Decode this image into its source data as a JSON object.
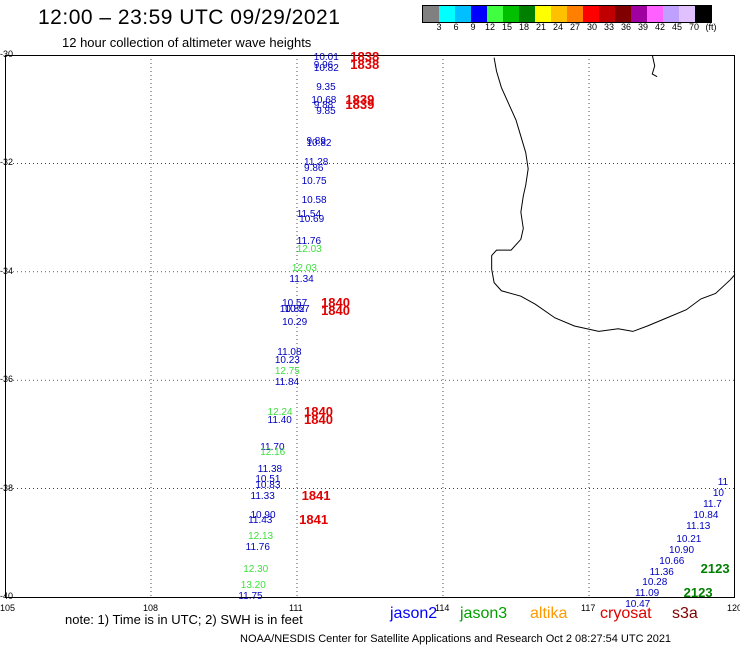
{
  "header": {
    "title": "12:00 – 23:59 UTC 09/29/2021",
    "subtitle": "12 hour collection of altimeter wave heights"
  },
  "scale": {
    "colors": [
      "#808080",
      "#00ffff",
      "#00c0ff",
      "#0000ff",
      "#40ff40",
      "#00c000",
      "#008000",
      "#ffff00",
      "#ffc000",
      "#ff8000",
      "#ff0000",
      "#c00000",
      "#800000",
      "#a000a0",
      "#ff60ff",
      "#c0a0ff",
      "#e0c0ff",
      "#000000"
    ],
    "labels": [
      "3",
      "6",
      "9",
      "12",
      "15",
      "18",
      "21",
      "24",
      "27",
      "30",
      "33",
      "36",
      "39",
      "42",
      "45",
      "70",
      "(ft)"
    ]
  },
  "axes": {
    "lon_ticks": [
      "105",
      "108",
      "111",
      "114",
      "117",
      "120"
    ],
    "lat_ticks": [
      "-30",
      "-32",
      "-34",
      "-36",
      "-38",
      "-40"
    ]
  },
  "observations": [
    {
      "t": "10.01",
      "c": "#0000c0",
      "lon": 111.55,
      "lat": -30.05
    },
    {
      "t": "9.96",
      "c": "#0000c0",
      "lon": 111.55,
      "lat": -30.2
    },
    {
      "t": "10.82",
      "c": "#0000c0",
      "lon": 111.55,
      "lat": -30.25
    },
    {
      "t": "9.35",
      "c": "#0000c0",
      "lon": 111.6,
      "lat": -30.6
    },
    {
      "t": "10.68",
      "c": "#0000c0",
      "lon": 111.5,
      "lat": -30.85
    },
    {
      "t": "9.88",
      "c": "#0000c0",
      "lon": 111.55,
      "lat": -30.95
    },
    {
      "t": "9.85",
      "c": "#0000c0",
      "lon": 111.6,
      "lat": -31.05
    },
    {
      "t": "9.89",
      "c": "#0000c0",
      "lon": 111.4,
      "lat": -31.6
    },
    {
      "t": "10.82",
      "c": "#0000c0",
      "lon": 111.4,
      "lat": -31.65
    },
    {
      "t": "11.28",
      "c": "#0000c0",
      "lon": 111.35,
      "lat": -32.0
    },
    {
      "t": "9.86",
      "c": "#0000c0",
      "lon": 111.35,
      "lat": -32.1
    },
    {
      "t": "10.75",
      "c": "#0000c0",
      "lon": 111.3,
      "lat": -32.35
    },
    {
      "t": "10.58",
      "c": "#0000c0",
      "lon": 111.3,
      "lat": -32.7
    },
    {
      "t": "11.54",
      "c": "#0000c0",
      "lon": 111.2,
      "lat": -32.95
    },
    {
      "t": "10.69",
      "c": "#0000c0",
      "lon": 111.25,
      "lat": -33.05
    },
    {
      "t": "11.76",
      "c": "#0000c0",
      "lon": 111.2,
      "lat": -33.45
    },
    {
      "t": "12.03",
      "c": "#40e040",
      "lon": 111.2,
      "lat": -33.6
    },
    {
      "t": "12.03",
      "c": "#40e040",
      "lon": 111.1,
      "lat": -33.95
    },
    {
      "t": "11.34",
      "c": "#0000c0",
      "lon": 111.05,
      "lat": -34.15
    },
    {
      "t": "10.57",
      "c": "#0000c0",
      "lon": 110.9,
      "lat": -34.6
    },
    {
      "t": "10.82",
      "c": "#0000c0",
      "lon": 110.85,
      "lat": -34.7
    },
    {
      "t": "10.57",
      "c": "#0000c0",
      "lon": 110.95,
      "lat": -34.7
    },
    {
      "t": "10.29",
      "c": "#0000c0",
      "lon": 110.9,
      "lat": -34.95
    },
    {
      "t": "11.08",
      "c": "#0000c0",
      "lon": 110.8,
      "lat": -35.5
    },
    {
      "t": "10.23",
      "c": "#0000c0",
      "lon": 110.75,
      "lat": -35.65
    },
    {
      "t": "12.75",
      "c": "#40e040",
      "lon": 110.75,
      "lat": -35.85
    },
    {
      "t": "11.84",
      "c": "#0000c0",
      "lon": 110.75,
      "lat": -36.05
    },
    {
      "t": "12.24",
      "c": "#40e040",
      "lon": 110.6,
      "lat": -36.6
    },
    {
      "t": "11.40",
      "c": "#0000c0",
      "lon": 110.6,
      "lat": -36.75
    },
    {
      "t": "11.70",
      "c": "#0000c0",
      "lon": 110.45,
      "lat": -37.25
    },
    {
      "t": "12.16",
      "c": "#40e040",
      "lon": 110.45,
      "lat": -37.35
    },
    {
      "t": "11.38",
      "c": "#0000c0",
      "lon": 110.4,
      "lat": -37.65
    },
    {
      "t": "10.51",
      "c": "#0000c0",
      "lon": 110.35,
      "lat": -37.85
    },
    {
      "t": "10.83",
      "c": "#0000c0",
      "lon": 110.35,
      "lat": -37.95
    },
    {
      "t": "11.33",
      "c": "#0000c0",
      "lon": 110.25,
      "lat": -38.15
    },
    {
      "t": "10.90",
      "c": "#0000c0",
      "lon": 110.25,
      "lat": -38.5
    },
    {
      "t": "11.43",
      "c": "#0000c0",
      "lon": 110.2,
      "lat": -38.6
    },
    {
      "t": "12.13",
      "c": "#40e040",
      "lon": 110.2,
      "lat": -38.9
    },
    {
      "t": "11.76",
      "c": "#0000c0",
      "lon": 110.15,
      "lat": -39.1
    },
    {
      "t": "12.30",
      "c": "#40e040",
      "lon": 110.1,
      "lat": -39.5
    },
    {
      "t": "13.20",
      "c": "#40e040",
      "lon": 110.05,
      "lat": -39.8
    },
    {
      "t": "11.75",
      "c": "#0000c0",
      "lon": 110.0,
      "lat": -40.0
    },
    {
      "t": "11",
      "c": "#0000c0",
      "lon": 119.85,
      "lat": -37.9
    },
    {
      "t": "10",
      "c": "#0000c0",
      "lon": 119.75,
      "lat": -38.1
    },
    {
      "t": "11.7",
      "c": "#0000c0",
      "lon": 119.55,
      "lat": -38.3
    },
    {
      "t": "10.84",
      "c": "#0000c0",
      "lon": 119.35,
      "lat": -38.5
    },
    {
      "t": "11.13",
      "c": "#0000c0",
      "lon": 119.2,
      "lat": -38.7
    },
    {
      "t": "10.21",
      "c": "#0000c0",
      "lon": 119.0,
      "lat": -38.95
    },
    {
      "t": "10.90",
      "c": "#0000c0",
      "lon": 118.85,
      "lat": -39.15
    },
    {
      "t": "10.66",
      "c": "#0000c0",
      "lon": 118.65,
      "lat": -39.35
    },
    {
      "t": "11.36",
      "c": "#0000c0",
      "lon": 118.45,
      "lat": -39.55
    },
    {
      "t": "10.28",
      "c": "#0000c0",
      "lon": 118.3,
      "lat": -39.75
    },
    {
      "t": "11.09",
      "c": "#0000c0",
      "lon": 118.15,
      "lat": -39.95
    },
    {
      "t": "10.47",
      "c": "#0000c0",
      "lon": 117.95,
      "lat": -40.15
    }
  ],
  "time_labels": [
    {
      "t": "1838",
      "lon": 112.3,
      "lat": -30.05
    },
    {
      "t": "1838",
      "lon": 112.3,
      "lat": -30.2
    },
    {
      "t": "1839",
      "lon": 112.2,
      "lat": -30.85
    },
    {
      "t": "1839",
      "lon": 112.2,
      "lat": -30.95
    },
    {
      "t": "1840",
      "lon": 111.7,
      "lat": -34.6
    },
    {
      "t": "1840",
      "lon": 111.7,
      "lat": -34.75
    },
    {
      "t": "1840",
      "lon": 111.35,
      "lat": -36.6
    },
    {
      "t": "1840",
      "lon": 111.35,
      "lat": -36.75
    },
    {
      "t": "1841",
      "lon": 111.3,
      "lat": -38.15
    },
    {
      "t": "1841",
      "lon": 111.25,
      "lat": -38.6
    },
    {
      "t": "2123",
      "lon": 119.5,
      "lat": -39.5
    },
    {
      "t": "2123",
      "lon": 119.15,
      "lat": -39.95
    }
  ],
  "note": "note: 1) Time is in UTC; 2) SWH is in feet",
  "satellites": [
    {
      "name": "jason2",
      "color": "#0000ff"
    },
    {
      "name": "jason3",
      "color": "#00a000"
    },
    {
      "name": "altika",
      "color": "#ff9900"
    },
    {
      "name": "cryosat",
      "color": "#e00000"
    },
    {
      "name": "s3a",
      "color": "#800000"
    }
  ],
  "footer": "NOAA/NESDIS Center for Satellite Applications and Research    Oct  2 08:27:54 UTC 2021"
}
